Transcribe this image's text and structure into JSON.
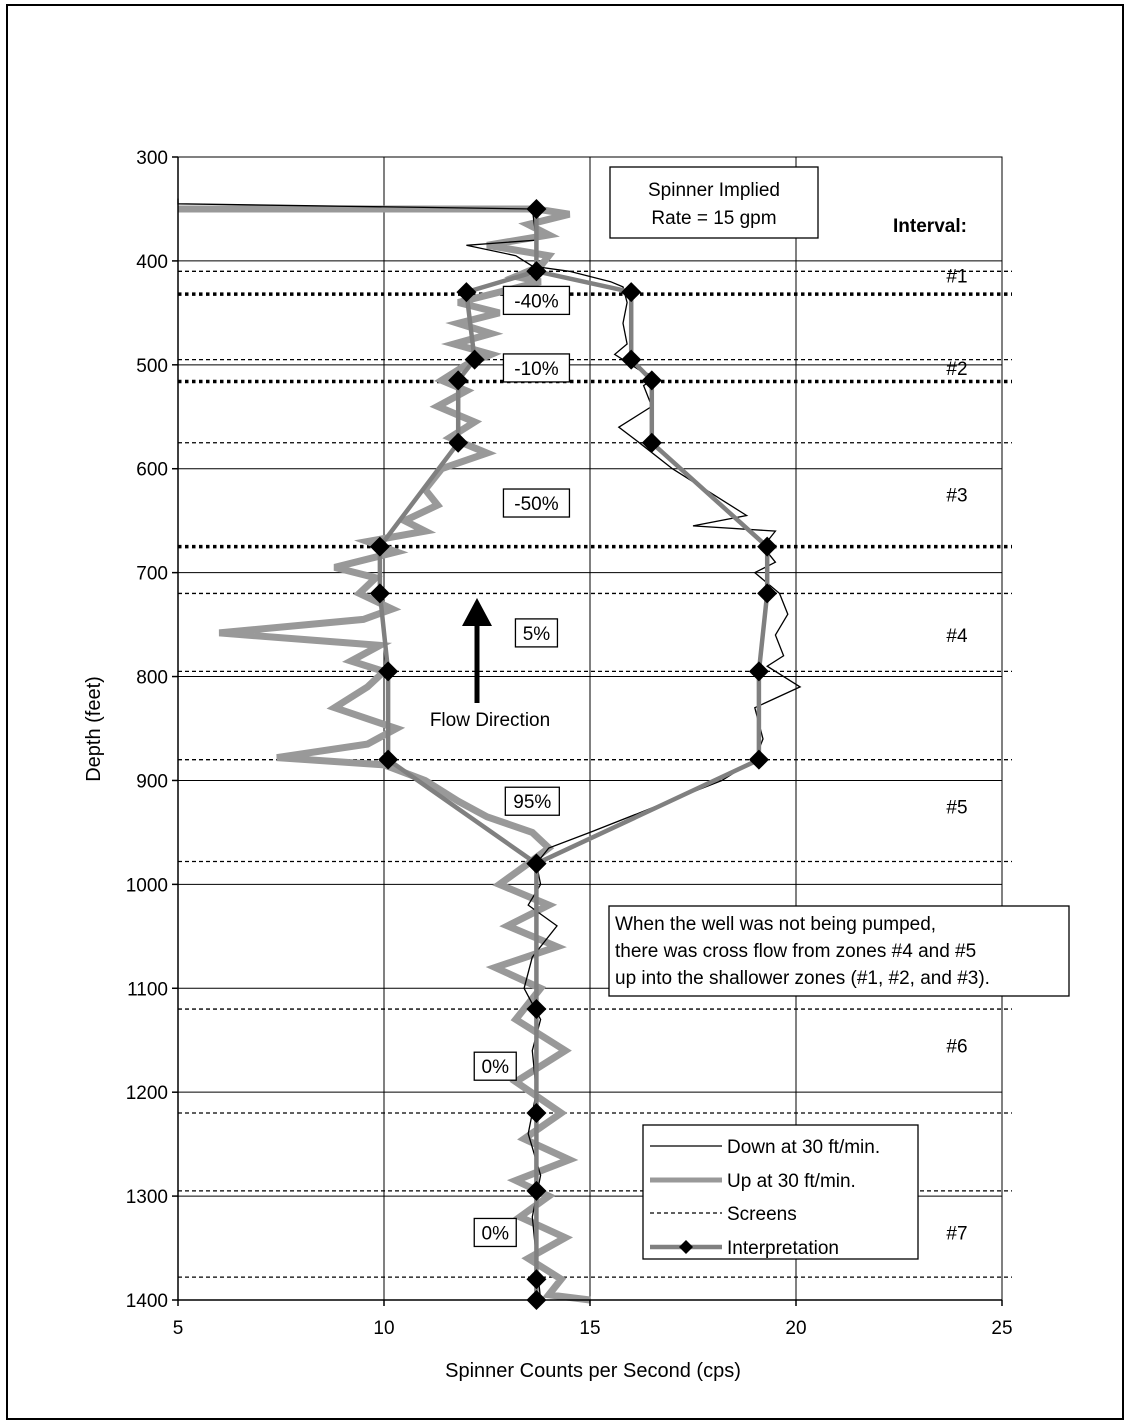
{
  "chart_data": {
    "type": "line",
    "title": "",
    "xlabel": "Spinner Counts per Second (cps)",
    "ylabel": "Depth (feet)",
    "xlim": [
      5,
      25
    ],
    "ylim": [
      300,
      1400
    ],
    "y_inverted": true,
    "x_ticks": [
      "5",
      "10",
      "15",
      "20",
      "25"
    ],
    "y_ticks": [
      "300",
      "400",
      "500",
      "600",
      "700",
      "800",
      "900",
      "1000",
      "1100",
      "1200",
      "1300",
      "1400"
    ],
    "grid": "major, both axes",
    "legend_position": "bottom-right",
    "legend": {
      "down": "Down at 30 ft/min.",
      "up": "Up at 30 ft/min.",
      "screens": "Screens",
      "interp": "Interpretation"
    },
    "series": [
      {
        "name": "Down at 30 ft/min.",
        "color": "#000000",
        "points": [
          [
            5.0,
            340
          ],
          [
            5.0,
            345
          ],
          [
            13.6,
            350
          ],
          [
            13.7,
            380
          ],
          [
            12.0,
            385
          ],
          [
            13.2,
            395
          ],
          [
            13.6,
            405
          ],
          [
            14.5,
            410
          ],
          [
            15.0,
            415
          ],
          [
            15.5,
            420
          ],
          [
            15.8,
            425
          ],
          [
            15.9,
            440
          ],
          [
            15.8,
            460
          ],
          [
            15.9,
            480
          ],
          [
            15.6,
            490
          ],
          [
            16.0,
            500
          ],
          [
            16.2,
            505
          ],
          [
            16.6,
            512
          ],
          [
            16.3,
            520
          ],
          [
            16.5,
            540
          ],
          [
            15.7,
            560
          ],
          [
            16.2,
            575
          ],
          [
            17.0,
            600
          ],
          [
            18.0,
            625
          ],
          [
            18.8,
            645
          ],
          [
            17.5,
            655
          ],
          [
            19.5,
            660
          ],
          [
            19.2,
            675
          ],
          [
            19.5,
            690
          ],
          [
            19.0,
            700
          ],
          [
            19.6,
            720
          ],
          [
            19.8,
            740
          ],
          [
            19.5,
            760
          ],
          [
            19.7,
            780
          ],
          [
            19.3,
            790
          ],
          [
            20.1,
            810
          ],
          [
            19.0,
            830
          ],
          [
            19.2,
            860
          ],
          [
            19.0,
            880
          ],
          [
            18.2,
            900
          ],
          [
            16.6,
            925
          ],
          [
            15.0,
            950
          ],
          [
            14.0,
            965
          ],
          [
            13.7,
            980
          ],
          [
            13.8,
            1000
          ],
          [
            13.5,
            1020
          ],
          [
            14.2,
            1040
          ],
          [
            13.6,
            1070
          ],
          [
            13.4,
            1100
          ],
          [
            13.8,
            1130
          ],
          [
            13.6,
            1160
          ],
          [
            13.7,
            1200
          ],
          [
            13.5,
            1240
          ],
          [
            13.8,
            1280
          ],
          [
            13.6,
            1320
          ],
          [
            13.7,
            1360
          ],
          [
            13.8,
            1400
          ]
        ]
      },
      {
        "name": "Up at 30 ft/min.",
        "color": "#999999",
        "points": [
          [
            5.0,
            350
          ],
          [
            13.7,
            350
          ],
          [
            14.5,
            355
          ],
          [
            13.5,
            365
          ],
          [
            14.0,
            375
          ],
          [
            12.5,
            385
          ],
          [
            14.0,
            395
          ],
          [
            13.8,
            405
          ],
          [
            13.2,
            415
          ],
          [
            13.8,
            420
          ],
          [
            12.8,
            430
          ],
          [
            11.8,
            440
          ],
          [
            12.8,
            450
          ],
          [
            11.8,
            460
          ],
          [
            12.6,
            470
          ],
          [
            11.7,
            480
          ],
          [
            12.6,
            490
          ],
          [
            12.0,
            500
          ],
          [
            11.4,
            515
          ],
          [
            12.0,
            525
          ],
          [
            11.3,
            540
          ],
          [
            12.2,
            555
          ],
          [
            11.6,
            570
          ],
          [
            12.5,
            585
          ],
          [
            11.4,
            600
          ],
          [
            11.0,
            620
          ],
          [
            11.3,
            635
          ],
          [
            10.5,
            650
          ],
          [
            11.0,
            660
          ],
          [
            9.6,
            670
          ],
          [
            10.3,
            680
          ],
          [
            8.8,
            695
          ],
          [
            9.8,
            705
          ],
          [
            9.4,
            720
          ],
          [
            10.2,
            735
          ],
          [
            9.5,
            745
          ],
          [
            6.0,
            758
          ],
          [
            9.9,
            770
          ],
          [
            9.2,
            785
          ],
          [
            10.0,
            795
          ],
          [
            9.6,
            810
          ],
          [
            8.8,
            830
          ],
          [
            10.3,
            850
          ],
          [
            9.6,
            865
          ],
          [
            7.4,
            878
          ],
          [
            10.0,
            885
          ],
          [
            11.0,
            900
          ],
          [
            11.8,
            920
          ],
          [
            12.5,
            935
          ],
          [
            13.6,
            950
          ],
          [
            14.0,
            965
          ],
          [
            13.5,
            980
          ],
          [
            12.8,
            1000
          ],
          [
            14.0,
            1020
          ],
          [
            13.0,
            1040
          ],
          [
            14.2,
            1060
          ],
          [
            12.7,
            1080
          ],
          [
            13.8,
            1100
          ],
          [
            13.2,
            1130
          ],
          [
            14.4,
            1160
          ],
          [
            13.2,
            1190
          ],
          [
            14.3,
            1220
          ],
          [
            13.4,
            1245
          ],
          [
            14.5,
            1265
          ],
          [
            13.2,
            1285
          ],
          [
            14.0,
            1300
          ],
          [
            13.3,
            1320
          ],
          [
            14.4,
            1340
          ],
          [
            13.5,
            1360
          ],
          [
            14.3,
            1380
          ],
          [
            14.0,
            1395
          ],
          [
            15.0,
            1400
          ]
        ]
      },
      {
        "name": "Interpretation",
        "color": "#808080",
        "marker_color": "#000000",
        "points": [
          [
            13.7,
            350
          ],
          [
            13.7,
            410
          ],
          [
            12.0,
            430
          ],
          [
            12.2,
            495
          ],
          [
            11.8,
            515
          ],
          [
            11.8,
            575
          ],
          [
            9.9,
            675
          ],
          [
            9.9,
            720
          ],
          [
            10.1,
            795
          ],
          [
            10.1,
            880
          ],
          [
            13.7,
            980
          ],
          [
            13.7,
            1120
          ],
          [
            13.7,
            1220
          ],
          [
            13.7,
            1295
          ],
          [
            13.7,
            1380
          ],
          [
            13.7,
            1400
          ]
        ],
        "down_points": [
          [
            13.7,
            410
          ],
          [
            16.0,
            430
          ],
          [
            16.0,
            495
          ],
          [
            16.5,
            515
          ],
          [
            16.5,
            575
          ],
          [
            19.3,
            675
          ],
          [
            19.3,
            720
          ],
          [
            19.1,
            795
          ],
          [
            19.1,
            880
          ],
          [
            13.7,
            980
          ]
        ]
      }
    ],
    "screens_light": [
      410,
      495,
      575,
      720,
      795,
      880,
      978,
      1120,
      1220,
      1295,
      1378
    ],
    "screens_bold": [
      432,
      516,
      675
    ],
    "intervals": [
      {
        "label": "#1",
        "y": 414
      },
      {
        "label": "#2",
        "y": 503
      },
      {
        "label": "#3",
        "y": 625
      },
      {
        "label": "#4",
        "y": 760
      },
      {
        "label": "#5",
        "y": 925
      },
      {
        "label": "#6",
        "y": 1155
      },
      {
        "label": "#7",
        "y": 1335
      }
    ],
    "percent_labels": [
      {
        "label": "-40%",
        "x": 13.7,
        "y": 438
      },
      {
        "label": "-10%",
        "x": 13.7,
        "y": 503
      },
      {
        "label": "-50%",
        "x": 13.7,
        "y": 633
      },
      {
        "label": "5%",
        "x": 13.7,
        "y": 758
      },
      {
        "label": "95%",
        "x": 13.6,
        "y": 920
      },
      {
        "label": "0%",
        "x": 12.7,
        "y": 1175
      },
      {
        "label": "0%",
        "x": 12.7,
        "y": 1335
      }
    ],
    "annotations": {
      "spinner_rate": [
        "Spinner Implied",
        "Rate = 15 gpm"
      ],
      "interval_header": "Interval:",
      "flow_direction": "Flow Direction",
      "note": [
        "When the well was not being pumped,",
        "there was cross flow from zones #4 and #5",
        "up into the shallower zones (#1, #2, and #3)."
      ]
    }
  }
}
